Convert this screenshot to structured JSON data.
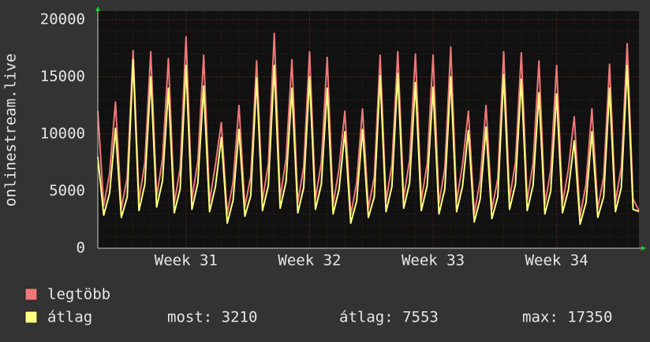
{
  "chart_data": {
    "type": "line",
    "ylabel": "onlinestream.live",
    "categories": [
      null,
      null,
      null,
      null,
      null,
      null,
      null,
      null,
      null,
      null,
      null,
      null,
      null,
      null,
      null,
      null,
      null,
      null,
      null,
      null,
      null,
      null,
      null,
      null,
      null,
      null,
      null,
      null,
      null,
      null,
      null,
      null,
      null,
      null,
      null,
      null,
      null,
      null,
      null,
      null,
      null,
      null,
      null,
      null,
      null,
      null,
      null,
      null,
      null,
      null,
      null,
      null,
      null,
      null,
      null,
      null,
      null,
      null,
      null,
      null,
      null,
      null,
      null,
      null,
      null,
      null,
      null,
      null,
      null,
      null,
      null,
      null,
      null,
      null,
      null,
      null,
      null,
      null,
      null,
      null,
      null,
      null,
      null,
      null,
      null,
      null,
      null,
      null,
      null,
      null,
      null,
      null,
      null
    ],
    "xlim": [
      0,
      92
    ],
    "xticks": [
      {
        "value": 15,
        "label": "Week 31"
      },
      {
        "value": 36,
        "label": "Week 32"
      },
      {
        "value": 57,
        "label": "Week 33"
      },
      {
        "value": 78,
        "label": "Week 34"
      }
    ],
    "ylim": [
      0,
      20000
    ],
    "yticks": [
      0,
      5000,
      10000,
      15000,
      20000
    ],
    "grid": true,
    "series": [
      {
        "name": "legtöbb",
        "color": "#f07878",
        "values": [
          12000,
          3700,
          6500,
          12800,
          3500,
          6200,
          17300,
          4200,
          7500,
          17200,
          4500,
          7800,
          16600,
          3900,
          7000,
          18500,
          4300,
          7600,
          16900,
          4100,
          7300,
          11000,
          3000,
          5800,
          12500,
          3600,
          6300,
          16400,
          4200,
          7400,
          18800,
          4400,
          7800,
          16500,
          4000,
          7100,
          17200,
          4300,
          7500,
          16700,
          3800,
          6900,
          12000,
          2900,
          5700,
          12200,
          3500,
          6200,
          16900,
          4100,
          7300,
          17200,
          4400,
          7700,
          17000,
          4200,
          7400,
          16900,
          3900,
          7000,
          17600,
          4100,
          7300,
          12000,
          3000,
          5900,
          12500,
          3400,
          6100,
          17200,
          4300,
          7500,
          17100,
          4200,
          7400,
          16400,
          3800,
          6800,
          16000,
          3900,
          6900,
          11500,
          2800,
          5600,
          12200,
          3500,
          6200,
          16100,
          4000,
          7100,
          17900,
          4300,
          3300
        ]
      },
      {
        "name": "átlag",
        "color": "#ffff80",
        "values": [
          8000,
          2900,
          4800,
          10500,
          2700,
          4500,
          16500,
          3300,
          5600,
          15000,
          3600,
          5900,
          14000,
          3100,
          5200,
          16000,
          3400,
          5700,
          14200,
          3200,
          5400,
          9700,
          2200,
          4200,
          10400,
          2800,
          4600,
          14900,
          3300,
          5500,
          16000,
          3500,
          5800,
          14000,
          3100,
          5300,
          15000,
          3400,
          5600,
          14000,
          3000,
          5100,
          10200,
          2200,
          4100,
          10400,
          2700,
          4500,
          15100,
          3200,
          5400,
          15300,
          3500,
          5700,
          14500,
          3300,
          5500,
          14100,
          3000,
          5200,
          15000,
          3200,
          5400,
          10300,
          2300,
          4300,
          10600,
          2600,
          4500,
          15200,
          3400,
          5600,
          14800,
          3300,
          5500,
          13600,
          3000,
          5000,
          13500,
          3100,
          5100,
          9400,
          2100,
          4000,
          10200,
          2700,
          4500,
          14000,
          3200,
          5300,
          16000,
          3400,
          3210
        ]
      }
    ],
    "legend_stats": [
      "most: 3210",
      "átlag: 7553",
      "max: 17350"
    ]
  }
}
